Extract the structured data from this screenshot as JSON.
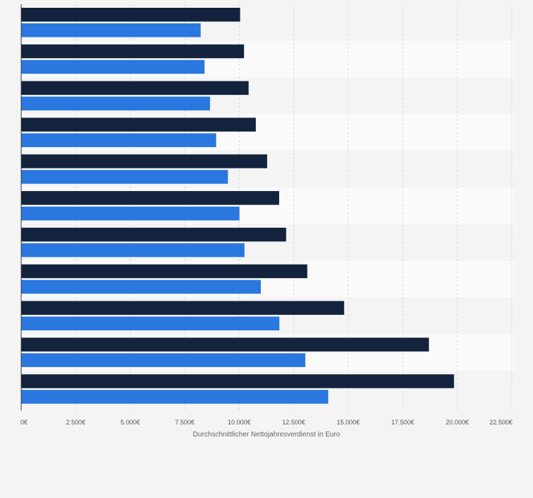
{
  "chart_data": {
    "type": "bar",
    "orientation": "horizontal",
    "categories": [
      "",
      "",
      "",
      "",
      "",
      "",
      "",
      "",
      "",
      "",
      ""
    ],
    "series": [
      {
        "values": [
          10040,
          10220,
          10430,
          10760,
          11280,
          11830,
          12150,
          13120,
          14810,
          18700,
          19850
        ]
      },
      {
        "values": [
          8230,
          8410,
          8660,
          8940,
          9480,
          10010,
          10240,
          10990,
          11840,
          13030,
          14080
        ]
      }
    ],
    "colors": [
      "#13233d",
      "#2a77df"
    ],
    "xlabel": "Durchschnittlicher Nettojahresverdienst in Euro",
    "ylabel": "",
    "xlim": [
      0,
      22500
    ],
    "x_ticks": [
      0,
      2500,
      5000,
      7500,
      10000,
      12500,
      15000,
      17500,
      20000,
      22500
    ],
    "x_tick_labels": [
      "0€",
      "2.500€",
      "5.000€",
      "7.500€",
      "10.000€",
      "12.500€",
      "15.000€",
      "17.500€",
      "20.000€",
      "22.500€"
    ],
    "grid": true,
    "legend": "none"
  }
}
